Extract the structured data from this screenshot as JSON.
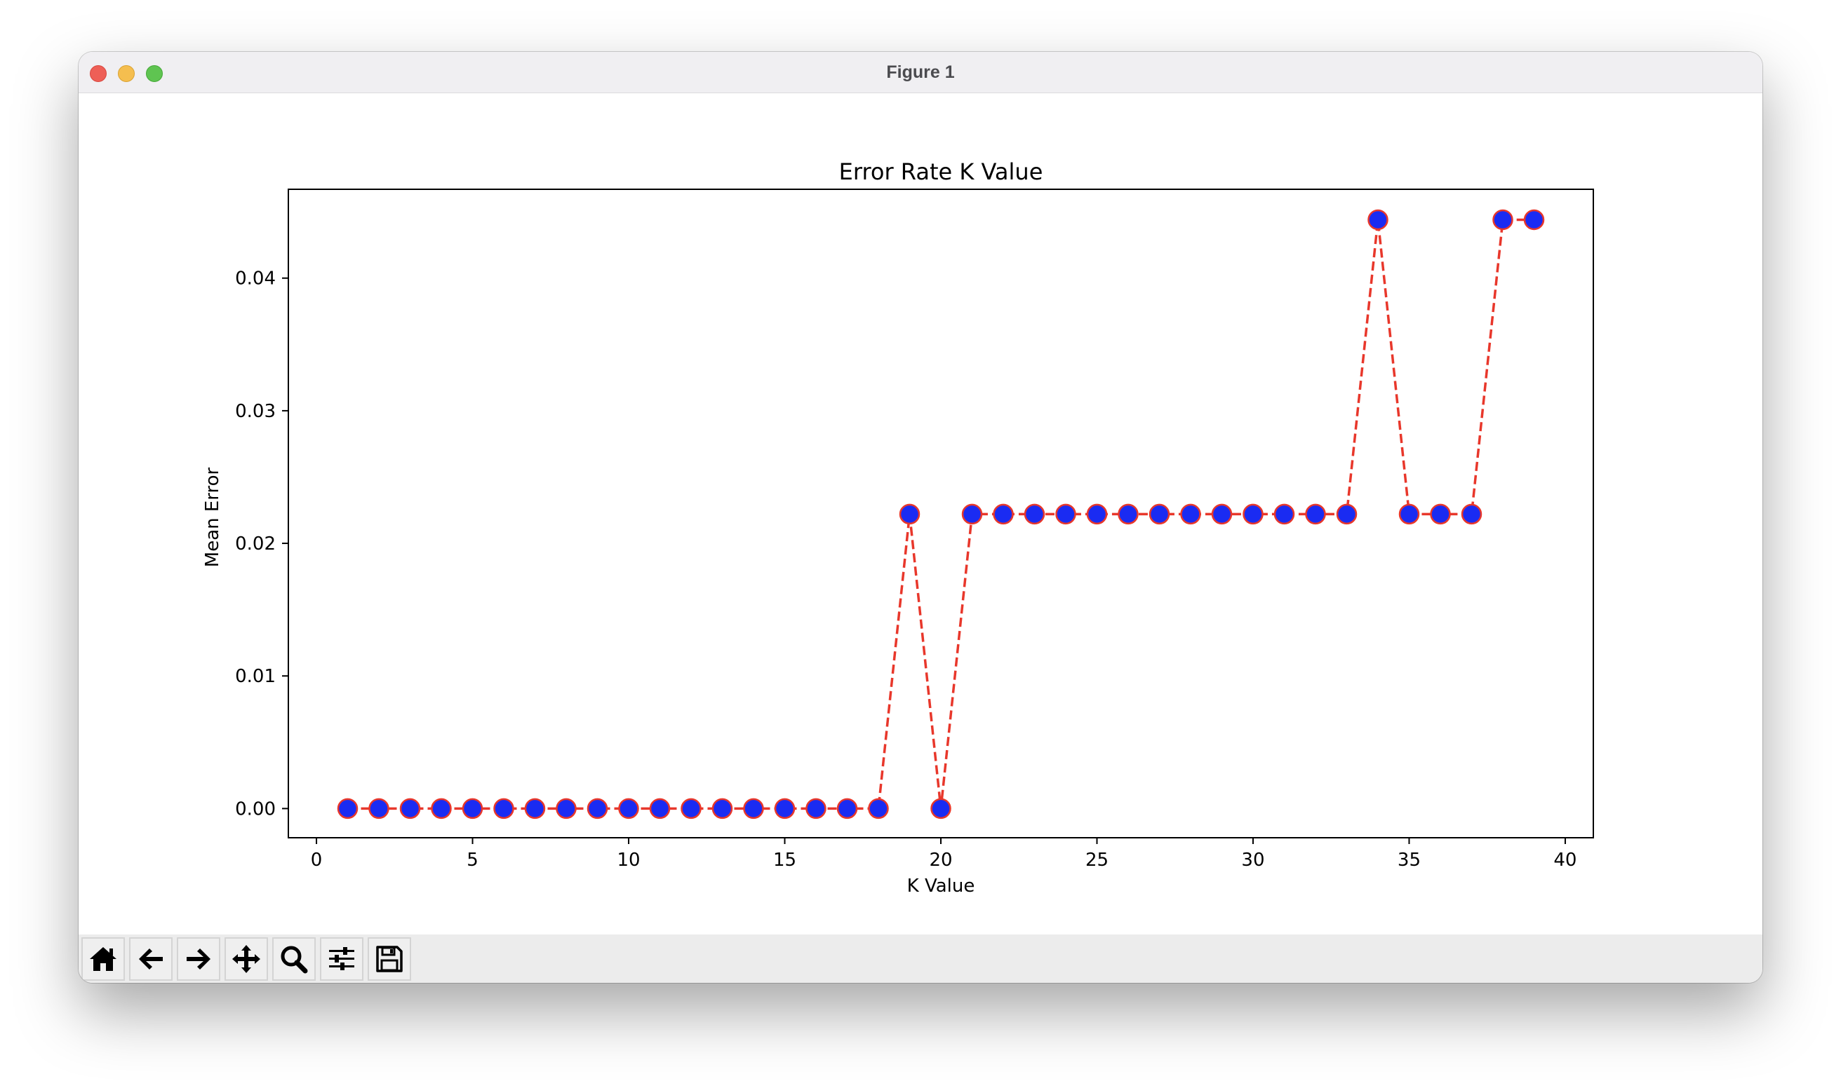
{
  "window": {
    "title": "Figure 1"
  },
  "toolbar": {
    "tools": [
      {
        "icon": "home-icon"
      },
      {
        "icon": "back-arrow-icon"
      },
      {
        "icon": "forward-arrow-icon"
      },
      {
        "icon": "pan-icon"
      },
      {
        "icon": "zoom-icon"
      },
      {
        "icon": "configure-subplots-icon"
      },
      {
        "icon": "save-icon"
      }
    ]
  },
  "chart_data": {
    "type": "line",
    "title": "Error Rate K Value",
    "xlabel": "K Value",
    "ylabel": "Mean Error",
    "xlim": [
      -0.9,
      40.9
    ],
    "ylim": [
      -0.0022,
      0.0467
    ],
    "xticks": [
      0,
      5,
      10,
      15,
      20,
      25,
      30,
      35,
      40
    ],
    "yticks": [
      0.0,
      0.01,
      0.02,
      0.03,
      0.04
    ],
    "ytick_labels": [
      "0.00",
      "0.01",
      "0.02",
      "0.03",
      "0.04"
    ],
    "grid": false,
    "line_color": "#e8372b",
    "line_style": "dashed",
    "marker": "circle",
    "marker_face_color": "#1a2bf2",
    "marker_edge_color": "#e8372b",
    "x": [
      1,
      2,
      3,
      4,
      5,
      6,
      7,
      8,
      9,
      10,
      11,
      12,
      13,
      14,
      15,
      16,
      17,
      18,
      19,
      20,
      21,
      22,
      23,
      24,
      25,
      26,
      27,
      28,
      29,
      30,
      31,
      32,
      33,
      34,
      35,
      36,
      37,
      38,
      39
    ],
    "y": [
      0,
      0,
      0,
      0,
      0,
      0,
      0,
      0,
      0,
      0,
      0,
      0,
      0,
      0,
      0,
      0,
      0,
      0,
      0.0222,
      0,
      0.0222,
      0.0222,
      0.0222,
      0.0222,
      0.0222,
      0.0222,
      0.0222,
      0.0222,
      0.0222,
      0.0222,
      0.0222,
      0.0222,
      0.0222,
      0.0444,
      0.0222,
      0.0222,
      0.0222,
      0.0444,
      0.0444
    ]
  }
}
